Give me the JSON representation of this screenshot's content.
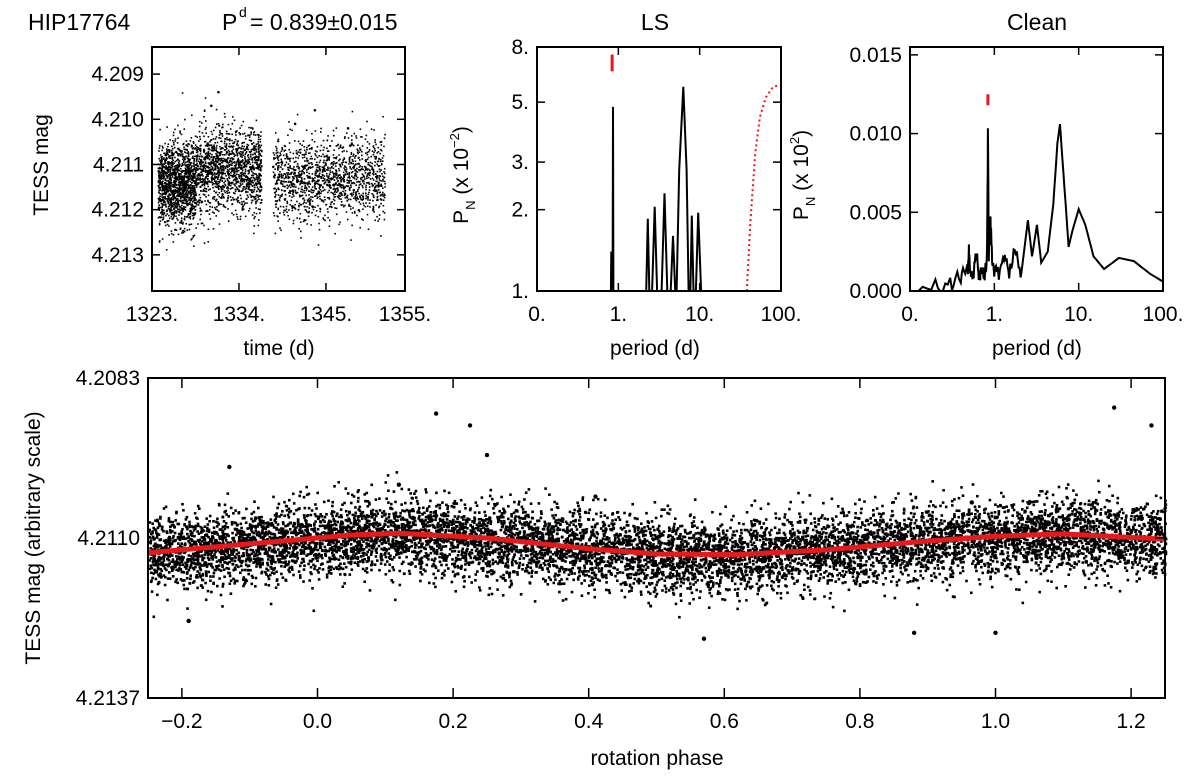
{
  "figure_title": {
    "star": "HIP17764",
    "p_label": "P",
    "p_sup": "d",
    "p_value": "= 0.839±0.015"
  },
  "chart_data": [
    {
      "id": "lightcurve",
      "type": "scatter",
      "title": "",
      "xlabel": "time (d)",
      "ylabel": "TESS mag",
      "xlim": [
        1323,
        1355
      ],
      "ylim": [
        4.2084,
        4.2138
      ],
      "y_inverted": true,
      "xticks": [
        1323,
        1334,
        1345,
        1355
      ],
      "xtick_labels": [
        "1323.",
        "1334.",
        "1345.",
        "1355."
      ],
      "yticks": [
        4.209,
        4.21,
        4.211,
        4.212,
        4.213
      ],
      "ytick_labels": [
        "4.209",
        "4.210",
        "4.211",
        "4.212",
        "4.213"
      ],
      "segments": [
        {
          "x_start": 1323.7,
          "x_end": 1328.5,
          "mean_mag": 4.2114,
          "scatter": 0.00045
        },
        {
          "x_start": 1328.5,
          "x_end": 1336.8,
          "mean_mag": 4.2111,
          "scatter": 0.00045
        },
        {
          "x_start": 1338.2,
          "x_end": 1352.4,
          "mean_mag": 4.2113,
          "scatter": 0.00045
        }
      ],
      "outliers": [
        [
          1330.5,
          4.2097
        ],
        [
          1331.4,
          4.2094
        ],
        [
          1341.1,
          4.2101
        ],
        [
          1343.6,
          4.2098
        ],
        [
          1347.8,
          4.2102
        ]
      ]
    },
    {
      "id": "ls",
      "type": "line",
      "title": "LS",
      "xlabel": "period (d)",
      "ylabel": "P_N (x 10^-2)",
      "x_scale": "log",
      "y_scale": "log",
      "xlim": [
        0.1,
        100
      ],
      "ylim": [
        1,
        8
      ],
      "xticks": [
        0.1,
        1,
        10,
        100
      ],
      "xtick_labels": [
        "0.",
        "1.",
        "10.",
        "100."
      ],
      "yticks": [
        1,
        2,
        3,
        5,
        8
      ],
      "ytick_labels": [
        "1.",
        "2.",
        "3.",
        "5.",
        "8."
      ],
      "series": [
        {
          "name": "periodogram",
          "color": "#000000",
          "points": [
            [
              0.81,
              1
            ],
            [
              0.82,
              1.4
            ],
            [
              0.83,
              1
            ],
            [
              0.85,
              1
            ],
            [
              0.86,
              4.8
            ],
            [
              0.87,
              1
            ],
            [
              2.2,
              1
            ],
            [
              2.3,
              1.85
            ],
            [
              2.4,
              1
            ],
            [
              2.6,
              1
            ],
            [
              2.8,
              2.05
            ],
            [
              3.0,
              1
            ],
            [
              3.4,
              1
            ],
            [
              3.7,
              2.3
            ],
            [
              4.0,
              1
            ],
            [
              4.4,
              1
            ],
            [
              4.7,
              1.6
            ],
            [
              5.0,
              1
            ],
            [
              5.2,
              1
            ],
            [
              5.6,
              2.8
            ],
            [
              6.3,
              5.7
            ],
            [
              6.9,
              2.8
            ],
            [
              7.3,
              1
            ],
            [
              7.7,
              1
            ],
            [
              8.0,
              1.9
            ],
            [
              8.4,
              1
            ],
            [
              9.0,
              1
            ],
            [
              9.6,
              1.95
            ],
            [
              10.4,
              1
            ]
          ]
        },
        {
          "name": "false-alarm level",
          "color": "#e8191a",
          "style": "dotted",
          "points": [
            [
              38,
              1
            ],
            [
              42,
              1.8
            ],
            [
              48,
              3.2
            ],
            [
              55,
              4.4
            ],
            [
              65,
              5.2
            ],
            [
              80,
              5.7
            ],
            [
              100,
              5.8
            ]
          ]
        }
      ],
      "marker": {
        "x": 0.839,
        "y_from": 6.5,
        "y_to": 7.5,
        "color": "#e8191a"
      }
    },
    {
      "id": "clean",
      "type": "line",
      "title": "Clean",
      "xlabel": "period (d)",
      "ylabel": "P_N (x 10^2)",
      "x_scale": "log",
      "xlim": [
        0.1,
        100
      ],
      "ylim": [
        0,
        0.0155
      ],
      "xticks": [
        0.1,
        1,
        10,
        100
      ],
      "xtick_labels": [
        "0.",
        "1.",
        "10.",
        "100."
      ],
      "yticks": [
        0,
        0.005,
        0.01,
        0.015
      ],
      "ytick_labels": [
        "0.000",
        "0.005",
        "0.010",
        "0.015"
      ],
      "series": [
        {
          "name": "clean periodogram",
          "color": "#000000",
          "points": [
            [
              0.1,
              0.0001
            ],
            [
              0.2,
              0.0003
            ],
            [
              0.3,
              0.0005
            ],
            [
              0.4,
              0.0009
            ],
            [
              0.48,
              0.0012
            ],
            [
              0.5,
              0.0024
            ],
            [
              0.52,
              0.001
            ],
            [
              0.58,
              0.0013
            ],
            [
              0.62,
              0.0023
            ],
            [
              0.66,
              0.0011
            ],
            [
              0.72,
              0.0015
            ],
            [
              0.78,
              0.001
            ],
            [
              0.82,
              0.0026
            ],
            [
              0.84,
              0.0101
            ],
            [
              0.86,
              0.0022
            ],
            [
              0.9,
              0.0045
            ],
            [
              0.95,
              0.0015
            ],
            [
              1.1,
              0.001
            ],
            [
              1.3,
              0.0022
            ],
            [
              1.5,
              0.0012
            ],
            [
              1.8,
              0.0025
            ],
            [
              2.1,
              0.0012
            ],
            [
              2.5,
              0.0045
            ],
            [
              2.8,
              0.0022
            ],
            [
              3.2,
              0.0042
            ],
            [
              3.6,
              0.0018
            ],
            [
              4.3,
              0.0025
            ],
            [
              5.0,
              0.0055
            ],
            [
              5.6,
              0.0094
            ],
            [
              6.0,
              0.0106
            ],
            [
              6.8,
              0.0065
            ],
            [
              7.6,
              0.0028
            ],
            [
              8.4,
              0.0038
            ],
            [
              10,
              0.0052
            ],
            [
              12,
              0.0042
            ],
            [
              15,
              0.0022
            ],
            [
              20,
              0.0014
            ],
            [
              30,
              0.0021
            ],
            [
              45,
              0.0019
            ],
            [
              70,
              0.0011
            ],
            [
              100,
              0.0006
            ]
          ]
        }
      ],
      "marker": {
        "x": 0.839,
        "y_from": 0.0118,
        "y_to": 0.0125,
        "color": "#e8191a"
      }
    },
    {
      "id": "phase",
      "type": "scatter",
      "title": "",
      "xlabel": "rotation phase",
      "ylabel": "TESS mag (arbitrary scale)",
      "xlim": [
        -0.25,
        1.25
      ],
      "ylim": [
        4.2083,
        4.2137
      ],
      "y_inverted": true,
      "xticks": [
        -0.2,
        0.0,
        0.2,
        0.4,
        0.6,
        0.8,
        1.0,
        1.2
      ],
      "xtick_labels": [
        "−0.2",
        "0.0",
        "0.2",
        "0.4",
        "0.6",
        "0.8",
        "1.0",
        "1.2"
      ],
      "yticks": [
        4.2083,
        4.211,
        4.2137
      ],
      "ytick_labels": [
        "4.2083",
        "4.2110",
        "4.2137"
      ],
      "scatter": {
        "mean_mag": 4.21115,
        "spread": 0.0005
      },
      "outliers": [
        [
          -0.13,
          4.2098
        ],
        [
          0.12,
          4.2101
        ],
        [
          0.175,
          4.2089
        ],
        [
          0.225,
          4.2091
        ],
        [
          0.25,
          4.2096
        ],
        [
          0.41,
          4.2103
        ],
        [
          0.965,
          4.2104
        ],
        [
          1.175,
          4.2088
        ],
        [
          1.23,
          4.2091
        ],
        [
          1.0,
          4.2126
        ],
        [
          -0.19,
          4.2124
        ],
        [
          0.57,
          4.2127
        ],
        [
          0.88,
          4.2126
        ]
      ],
      "fit": {
        "name": "sinusoidal fit",
        "color": "#e8191a",
        "points": [
          [
            -0.25,
            4.21125
          ],
          [
            -0.1,
            4.2111
          ],
          [
            0.05,
            4.21095
          ],
          [
            0.12,
            4.21092
          ],
          [
            0.25,
            4.211
          ],
          [
            0.4,
            4.21118
          ],
          [
            0.5,
            4.21127
          ],
          [
            0.62,
            4.21128
          ],
          [
            0.75,
            4.2112
          ],
          [
            0.9,
            4.21105
          ],
          [
            1.0,
            4.21097
          ],
          [
            1.1,
            4.21093
          ],
          [
            1.25,
            4.21102
          ]
        ]
      }
    }
  ]
}
